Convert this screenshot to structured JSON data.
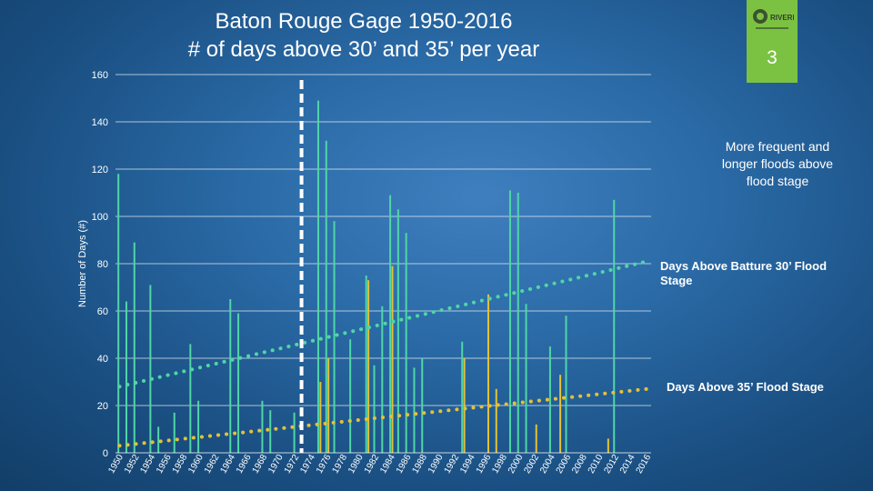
{
  "title_line1": "Baton Rouge Gage 1950-2016",
  "title_line2": "# of days above 30’ and 35’ per year",
  "badge": {
    "number": "3",
    "logo_text": "RIVERPR",
    "color": "#7cc242"
  },
  "annotations": {
    "more_frequent": "More frequent and longer floods above flood stage",
    "days_above_30": "Days Above Batture 30’ Flood Stage",
    "days_above_35": "Days Above 35’ Flood Stage"
  },
  "chart_data": {
    "type": "bar",
    "title": "Baton Rouge Gage 1950-2016 # of days above 30’ and 35’ per year",
    "ylabel": "Number of Days (#)",
    "xlabel": "",
    "ylim": [
      0,
      160
    ],
    "yticks": [
      0,
      20,
      40,
      60,
      80,
      100,
      120,
      140,
      160
    ],
    "grid": "horizontal",
    "x": [
      1950,
      1951,
      1952,
      1953,
      1954,
      1955,
      1956,
      1957,
      1958,
      1959,
      1960,
      1961,
      1962,
      1963,
      1964,
      1965,
      1966,
      1967,
      1968,
      1969,
      1970,
      1971,
      1972,
      1973,
      1974,
      1975,
      1976,
      1977,
      1978,
      1979,
      1980,
      1981,
      1982,
      1983,
      1984,
      1985,
      1986,
      1987,
      1988,
      1989,
      1990,
      1991,
      1992,
      1993,
      1994,
      1995,
      1996,
      1997,
      1998,
      1999,
      2000,
      2001,
      2002,
      2003,
      2004,
      2005,
      2006,
      2007,
      2008,
      2009,
      2010,
      2011,
      2012,
      2013,
      2014,
      2015,
      2016
    ],
    "xtick_labels": [
      "1950",
      "1952",
      "1954",
      "1956",
      "1958",
      "1960",
      "1962",
      "1964",
      "1966",
      "1968",
      "1970",
      "1972",
      "1974",
      "1976",
      "1978",
      "1980",
      "1982",
      "1984",
      "1986",
      "1988",
      "1990",
      "1992",
      "1994",
      "1996",
      "1998",
      "2000",
      "2002",
      "2004",
      "2006",
      "2008",
      "2010",
      "2012",
      "2014",
      "2016"
    ],
    "series": [
      {
        "name": "Days Above Batture 30’ Flood Stage",
        "color": "#4fd6a6",
        "values": [
          118,
          64,
          89,
          0,
          71,
          11,
          0,
          17,
          0,
          46,
          22,
          0,
          0,
          0,
          65,
          59,
          0,
          0,
          22,
          18,
          0,
          0,
          17,
          0,
          0,
          149,
          132,
          98,
          0,
          48,
          0,
          75,
          37,
          62,
          109,
          103,
          93,
          36,
          40,
          0,
          0,
          0,
          0,
          47,
          0,
          0,
          0,
          0,
          0,
          111,
          110,
          63,
          0,
          0,
          45,
          0,
          58,
          0,
          0,
          0,
          0,
          0,
          107,
          0,
          0,
          0,
          0
        ]
      },
      {
        "name": "Days Above 35’ Flood Stage",
        "color": "#e3c13a",
        "values": [
          0,
          0,
          0,
          0,
          0,
          0,
          0,
          0,
          0,
          0,
          0,
          0,
          0,
          0,
          0,
          0,
          0,
          0,
          0,
          0,
          0,
          0,
          0,
          0,
          0,
          30,
          40,
          0,
          0,
          0,
          0,
          73,
          0,
          0,
          79,
          0,
          0,
          0,
          0,
          0,
          0,
          0,
          0,
          40,
          0,
          0,
          67,
          27,
          0,
          0,
          0,
          0,
          12,
          0,
          0,
          33,
          0,
          0,
          0,
          0,
          0,
          6,
          0,
          0,
          0,
          0,
          0
        ]
      }
    ],
    "trendlines": [
      {
        "name": "Days Above Batture 30’ Flood Stage",
        "from": [
          1950,
          28
        ],
        "to": [
          2016,
          81
        ],
        "style": "dotted"
      },
      {
        "name": "Days Above 35’ Flood Stage",
        "from": [
          1950,
          3
        ],
        "to": [
          2016,
          27
        ],
        "style": "dotted"
      }
    ],
    "divider_year": 1973
  }
}
